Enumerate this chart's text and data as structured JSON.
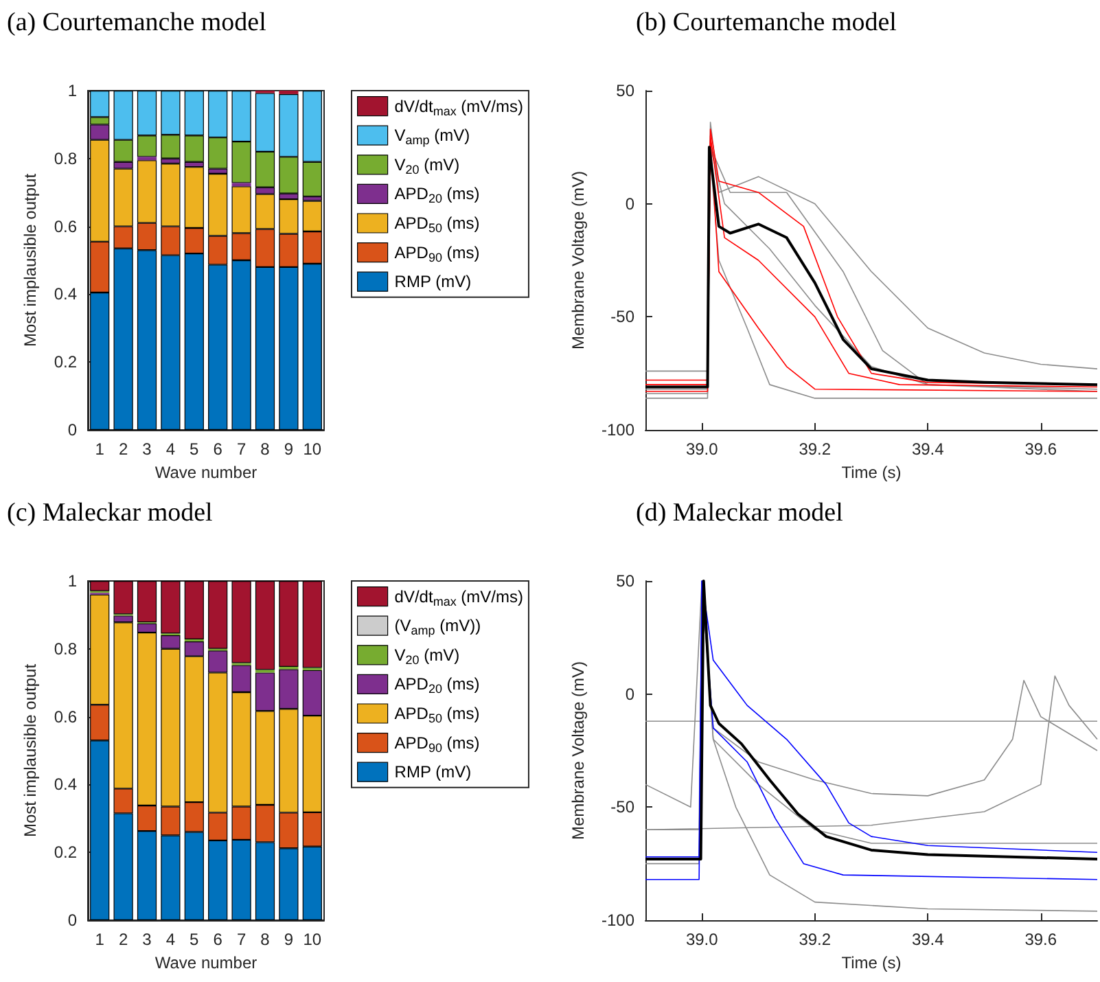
{
  "chart_data": [
    {
      "type": "bar",
      "title": "(a) Courtemanche model",
      "xlabel": "Wave number",
      "ylabel": "Most implausible output",
      "categories": [
        "1",
        "2",
        "3",
        "4",
        "5",
        "6",
        "7",
        "8",
        "9",
        "10"
      ],
      "stacked": true,
      "ylim": [
        0,
        1
      ],
      "yticks": [
        0,
        0.2,
        0.4,
        0.6,
        0.8,
        1
      ],
      "legend": "right",
      "series": [
        {
          "name": "RMP (mV)",
          "color": "#0072bd",
          "values": [
            0.405,
            0.535,
            0.53,
            0.515,
            0.52,
            0.487,
            0.5,
            0.48,
            0.48,
            0.49
          ]
        },
        {
          "name": "APD$_{90}$ (ms)",
          "color": "#d95319",
          "values": [
            0.15,
            0.065,
            0.08,
            0.085,
            0.075,
            0.085,
            0.08,
            0.112,
            0.098,
            0.095
          ]
        },
        {
          "name": "APD$_{50}$ (ms)",
          "color": "#edb120",
          "values": [
            0.3,
            0.17,
            0.185,
            0.185,
            0.18,
            0.183,
            0.138,
            0.103,
            0.102,
            0.09
          ]
        },
        {
          "name": "APD$_{20}$ (ms)",
          "color": "#7e2f8e",
          "values": [
            0.045,
            0.02,
            0.01,
            0.015,
            0.015,
            0.015,
            0.01,
            0.02,
            0.017,
            0.013
          ]
        },
        {
          "name": "V$_{20}$ (mV)",
          "color": "#77ac30",
          "values": [
            0.022,
            0.065,
            0.063,
            0.07,
            0.078,
            0.092,
            0.122,
            0.105,
            0.108,
            0.102
          ]
        },
        {
          "name": "V$_{amp}$ (mV)",
          "color": "#4dbeee",
          "values": [
            0.078,
            0.145,
            0.132,
            0.13,
            0.132,
            0.138,
            0.15,
            0.173,
            0.185,
            0.21
          ]
        },
        {
          "name": "dV/dt$_{max}$ (mV/ms)",
          "color": "#a2142f",
          "values": [
            0,
            0,
            0,
            0,
            0,
            0,
            0,
            0.007,
            0.01,
            0
          ]
        }
      ]
    },
    {
      "type": "line",
      "title": "(b) Courtemanche model",
      "xlabel": "Time (s)",
      "ylabel": "Membrane Voltage (mV)",
      "xlim": [
        38.9,
        39.7
      ],
      "xticks": [
        {
          "value": 39,
          "label": "39.0"
        },
        39.2,
        39.4,
        39.6
      ],
      "ylim": [
        -100,
        50
      ],
      "yticks": [
        -100,
        -50,
        0,
        50
      ],
      "marker": "none",
      "series": [
        {
          "color": "#8c8c8c",
          "x": [
            38.9,
            39.01,
            39.015,
            39.03,
            39.1,
            39.2,
            39.3,
            39.4,
            39.5,
            39.6,
            39.7
          ],
          "values": [
            -82,
            -82,
            36,
            5,
            12,
            0,
            -30,
            -55,
            -66,
            -71,
            -73
          ]
        },
        {
          "color": "#8c8c8c",
          "x": [
            38.9,
            39.01,
            39.015,
            39.03,
            39.08,
            39.12,
            39.2,
            39.7
          ],
          "values": [
            -86,
            -86,
            20,
            -25,
            -55,
            -80,
            -86,
            -86
          ]
        },
        {
          "color": "#8c8c8c",
          "x": [
            38.9,
            39.01,
            39.015,
            39.05,
            39.15,
            39.25,
            39.32,
            39.4,
            39.7
          ],
          "values": [
            -84,
            -84,
            25,
            5,
            5,
            -30,
            -65,
            -80,
            -83
          ]
        },
        {
          "color": "#8c8c8c",
          "x": [
            38.9,
            39.01,
            39.015,
            39.04,
            39.12,
            39.2,
            39.3,
            39.4,
            39.7
          ],
          "values": [
            -74,
            -74,
            25,
            0,
            -20,
            -45,
            -72,
            -80,
            -82
          ]
        },
        {
          "color": "#ff0000",
          "x": [
            38.9,
            39.01,
            39.015,
            39.03,
            39.1,
            39.18,
            39.24,
            39.3,
            39.4,
            39.7
          ],
          "values": [
            -78,
            -78,
            33,
            10,
            5,
            -10,
            -50,
            -75,
            -79,
            -80
          ]
        },
        {
          "color": "#ff0000",
          "x": [
            38.9,
            39.01,
            39.015,
            39.03,
            39.1,
            39.15,
            39.2,
            39.7
          ],
          "values": [
            -83,
            -83,
            28,
            -30,
            -55,
            -72,
            -82,
            -83
          ]
        },
        {
          "color": "#ff0000",
          "x": [
            38.9,
            39.01,
            39.015,
            39.04,
            39.1,
            39.2,
            39.26,
            39.35,
            39.7
          ],
          "values": [
            -80,
            -80,
            30,
            -15,
            -25,
            -50,
            -75,
            -80,
            -81
          ]
        },
        {
          "color": "#000000",
          "x": [
            38.9,
            39.01,
            39.013,
            39.03,
            39.05,
            39.1,
            39.15,
            39.2,
            39.25,
            39.3,
            39.4,
            39.5,
            39.7
          ],
          "values": [
            -81,
            -81,
            25,
            -10,
            -13,
            -9,
            -15,
            -35,
            -60,
            -73,
            -78,
            -79,
            -80
          ]
        }
      ]
    },
    {
      "type": "bar",
      "title": "(c) Maleckar model",
      "xlabel": "Wave number",
      "ylabel": "Most implausible output",
      "categories": [
        "1",
        "2",
        "3",
        "4",
        "5",
        "6",
        "7",
        "8",
        "9",
        "10"
      ],
      "stacked": true,
      "ylim": [
        0,
        1
      ],
      "yticks": [
        0,
        0.2,
        0.4,
        0.6,
        0.8,
        1
      ],
      "legend": "right",
      "series": [
        {
          "name": "RMP (mV)",
          "color": "#0072bd",
          "values": [
            0.53,
            0.315,
            0.263,
            0.25,
            0.26,
            0.235,
            0.237,
            0.23,
            0.212,
            0.217
          ]
        },
        {
          "name": "APD$_{90}$ (ms)",
          "color": "#d95319",
          "values": [
            0.105,
            0.073,
            0.075,
            0.085,
            0.088,
            0.082,
            0.098,
            0.11,
            0.105,
            0.101
          ]
        },
        {
          "name": "APD$_{50}$ (ms)",
          "color": "#edb120",
          "values": [
            0.325,
            0.49,
            0.51,
            0.465,
            0.43,
            0.413,
            0.337,
            0.277,
            0.306,
            0.285
          ]
        },
        {
          "name": "APD$_{20}$ (ms)",
          "color": "#7e2f8e",
          "values": [
            0.005,
            0.02,
            0.027,
            0.04,
            0.044,
            0.065,
            0.08,
            0.113,
            0.117,
            0.134
          ]
        },
        {
          "name": "V$_{20}$ (mV)",
          "color": "#77ac30",
          "values": [
            0.005,
            0.004,
            0.003,
            0.005,
            0.006,
            0.005,
            0.006,
            0.008,
            0.007,
            0.007
          ]
        },
        {
          "name": "(V$_{amp}$ (mV))",
          "color": "#cccccc",
          "values": [
            0,
            0,
            0,
            0,
            0,
            0,
            0,
            0,
            0,
            0
          ]
        },
        {
          "name": "dV/dt$_{max}$ (mV/ms)",
          "color": "#a2142f",
          "values": [
            0.03,
            0.098,
            0.122,
            0.155,
            0.172,
            0.2,
            0.242,
            0.262,
            0.253,
            0.256
          ]
        }
      ]
    },
    {
      "type": "line",
      "title": "(d) Maleckar model",
      "xlabel": "Time (s)",
      "ylabel": "Membrane Voltage (mV)",
      "xlim": [
        38.9,
        39.7
      ],
      "xticks": [
        {
          "value": 39,
          "label": "39.0"
        },
        39.2,
        39.4,
        39.6
      ],
      "ylim": [
        -100,
        50
      ],
      "yticks": [
        -100,
        -50,
        0,
        50
      ],
      "marker": "none",
      "series": [
        {
          "color": "#8c8c8c",
          "x": [
            38.9,
            38.995,
            39.0,
            39.02,
            39.06,
            39.12,
            39.2,
            39.4,
            39.7
          ],
          "values": [
            -75,
            -75,
            50,
            -20,
            -50,
            -80,
            -92,
            -95,
            -96
          ]
        },
        {
          "color": "#8c8c8c",
          "x": [
            38.9,
            39.7
          ],
          "values": [
            -12,
            -12
          ]
        },
        {
          "color": "#8c8c8c",
          "x": [
            38.9,
            38.98,
            39.0,
            39.02,
            39.1,
            39.2,
            39.3,
            39.4,
            39.5,
            39.55,
            39.57,
            39.6,
            39.7
          ],
          "values": [
            -40,
            -50,
            50,
            -15,
            -30,
            -38,
            -44,
            -45,
            -38,
            -20,
            6,
            -10,
            -25
          ]
        },
        {
          "color": "#8c8c8c",
          "x": [
            38.9,
            38.995,
            39.0,
            39.02,
            39.1,
            39.2,
            39.3,
            39.7
          ],
          "values": [
            -60,
            -60,
            50,
            -20,
            -40,
            -60,
            -66,
            -66
          ]
        },
        {
          "color": "#8c8c8c",
          "x": [
            38.9,
            39.3,
            39.5,
            39.6,
            39.625,
            39.65,
            39.7
          ],
          "values": [
            -60,
            -58,
            -52,
            -40,
            8,
            -5,
            -20
          ]
        },
        {
          "color": "#0000ff",
          "x": [
            38.9,
            38.995,
            39.0,
            39.02,
            39.08,
            39.15,
            39.22,
            39.26,
            39.3,
            39.4,
            39.7
          ],
          "values": [
            -72,
            -72,
            50,
            15,
            -5,
            -20,
            -40,
            -57,
            -63,
            -67,
            -70
          ]
        },
        {
          "color": "#0000ff",
          "x": [
            38.9,
            38.995,
            39.0,
            39.02,
            39.08,
            39.13,
            39.18,
            39.25,
            39.7
          ],
          "values": [
            -82,
            -82,
            50,
            -15,
            -30,
            -55,
            -75,
            -80,
            -82
          ]
        },
        {
          "color": "#000000",
          "x": [
            38.9,
            38.998,
            39.003,
            39.015,
            39.03,
            39.07,
            39.12,
            39.17,
            39.22,
            39.3,
            39.4,
            39.7
          ],
          "values": [
            -73,
            -73,
            50,
            -5,
            -13,
            -22,
            -38,
            -53,
            -63,
            -69,
            -71,
            -73
          ]
        }
      ]
    }
  ]
}
